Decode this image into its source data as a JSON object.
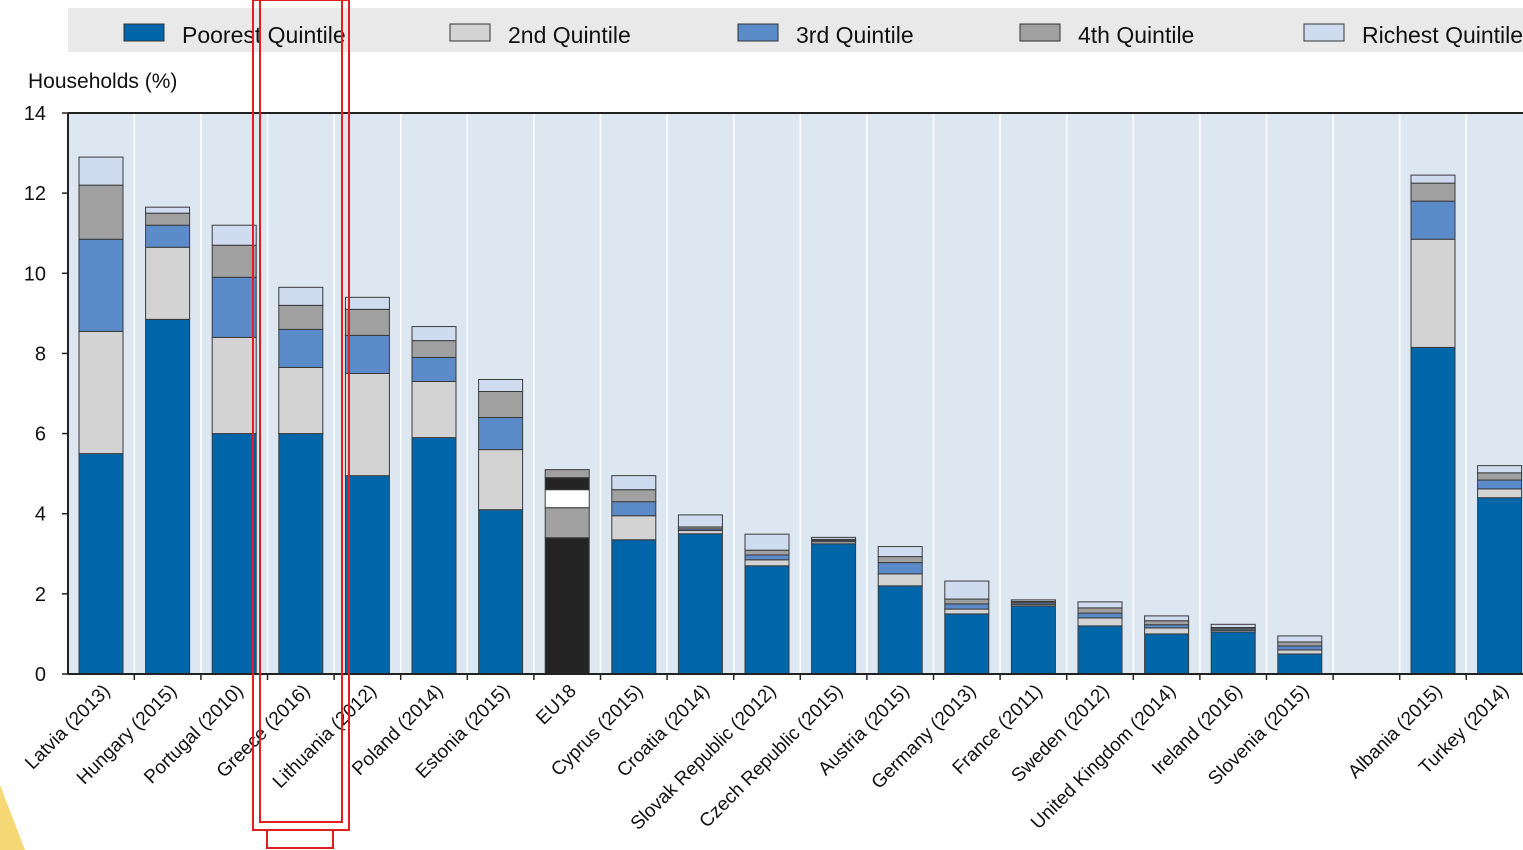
{
  "chart_data": {
    "type": "bar",
    "stacked": true,
    "ylabel": "Households (%)",
    "ylim": [
      0,
      14
    ],
    "yticks": [
      0,
      2,
      4,
      6,
      8,
      10,
      12,
      14
    ],
    "grid": "vertical",
    "legend_position": "top",
    "categories": [
      "Latvia (2013)",
      "Hungary (2015)",
      "Portugal (2010)",
      "Greece (2016)",
      "Lithuania (2012)",
      "Poland (2014)",
      "Estonia (2015)",
      "EU18",
      "Cyprus (2015)",
      "Croatia (2014)",
      "Slovak Republic (2012)",
      "Czech Republic (2015)",
      "Austria (2015)",
      "Germany (2013)",
      "France (2011)",
      "Sweden (2012)",
      "United Kingdom (2014)",
      "Ireland (2016)",
      "Slovenia (2015)",
      "",
      "Albania (2015)",
      "Turkey (2014)"
    ],
    "series": [
      {
        "name": "Poorest Quintile",
        "color": "#0066aa",
        "values": [
          5.5,
          8.85,
          6.0,
          6.0,
          4.95,
          5.9,
          4.1,
          3.4,
          3.35,
          3.5,
          2.7,
          3.25,
          2.2,
          1.5,
          1.7,
          1.2,
          1.0,
          1.05,
          0.5,
          null,
          8.15,
          4.4
        ]
      },
      {
        "name": "2nd Quintile",
        "color": "#d3d3d3",
        "values": [
          3.05,
          1.8,
          2.4,
          1.65,
          2.55,
          1.4,
          1.5,
          0.75,
          0.6,
          0.08,
          0.15,
          0.05,
          0.3,
          0.12,
          0.04,
          0.2,
          0.15,
          0.04,
          0.1,
          null,
          2.7,
          0.22
        ]
      },
      {
        "name": "3rd Quintile",
        "color": "#5b8bc9",
        "values": [
          2.3,
          0.55,
          1.5,
          0.95,
          0.95,
          0.6,
          0.8,
          0.45,
          0.35,
          0.04,
          0.12,
          0.03,
          0.28,
          0.13,
          0.04,
          0.12,
          0.08,
          0.04,
          0.1,
          null,
          0.95,
          0.22
        ]
      },
      {
        "name": "4th Quintile",
        "color": "#a0a0a0",
        "values": [
          1.35,
          0.3,
          0.8,
          0.6,
          0.65,
          0.42,
          0.65,
          0.3,
          0.3,
          0.05,
          0.12,
          0.03,
          0.15,
          0.12,
          0.03,
          0.13,
          0.1,
          0.03,
          0.1,
          null,
          0.45,
          0.18
        ]
      },
      {
        "name": "Richest Quintile",
        "color": "#cfdcf0",
        "values": [
          0.7,
          0.15,
          0.5,
          0.45,
          0.3,
          0.35,
          0.3,
          0.2,
          0.35,
          0.3,
          0.4,
          0.05,
          0.25,
          0.45,
          0.04,
          0.15,
          0.12,
          0.08,
          0.15,
          null,
          0.2,
          0.18
        ]
      }
    ],
    "eu18_colors": [
      "#242424",
      "#a0a0a0",
      "#ffffff",
      "#242424",
      "#a0a0a0"
    ]
  }
}
